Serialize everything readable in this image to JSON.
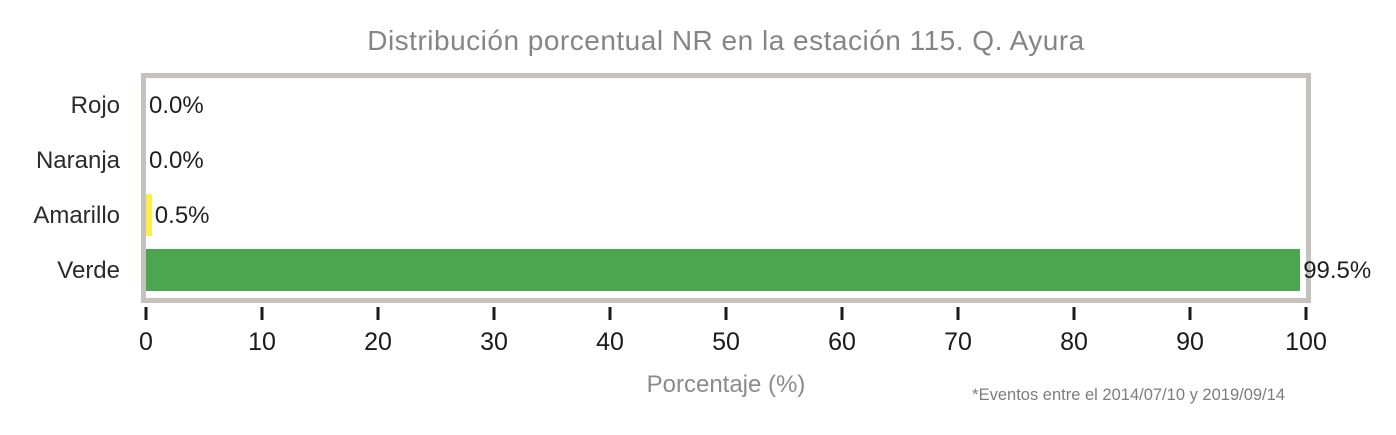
{
  "title": "Distribución porcentual NR en la estación 115. Q. Ayura",
  "x_axis_title": "Porcentaje (%)",
  "footnote": "*Eventos entre el 2014/07/10 y 2019/09/14",
  "colors": {
    "frame": "#c5c1bd",
    "bar_amarillo": "#fdee4a",
    "bar_verde": "#4ca64f",
    "title_text": "#858585",
    "axis_text": "#1a1a1a",
    "muted_text": "#7d7d7d"
  },
  "chart_data": {
    "type": "bar",
    "orientation": "horizontal",
    "title": "Distribución porcentual NR en la estación 115. Q. Ayura",
    "categories": [
      "Rojo",
      "Naranja",
      "Amarillo",
      "Verde"
    ],
    "values": [
      0.0,
      0.0,
      0.5,
      99.5
    ],
    "value_labels": [
      "0.0%",
      "0.0%",
      "0.5%",
      "99.5%"
    ],
    "bar_colors": [
      null,
      null,
      "#fdee4a",
      "#4ca64f"
    ],
    "xlabel": "Porcentaje (%)",
    "ylabel": "",
    "xlim": [
      0,
      100
    ],
    "xticks": [
      0,
      10,
      20,
      30,
      40,
      50,
      60,
      70,
      80,
      90,
      100
    ],
    "grid": false,
    "legend": false,
    "footnote": "*Eventos entre el 2014/07/10 y 2019/09/14"
  }
}
